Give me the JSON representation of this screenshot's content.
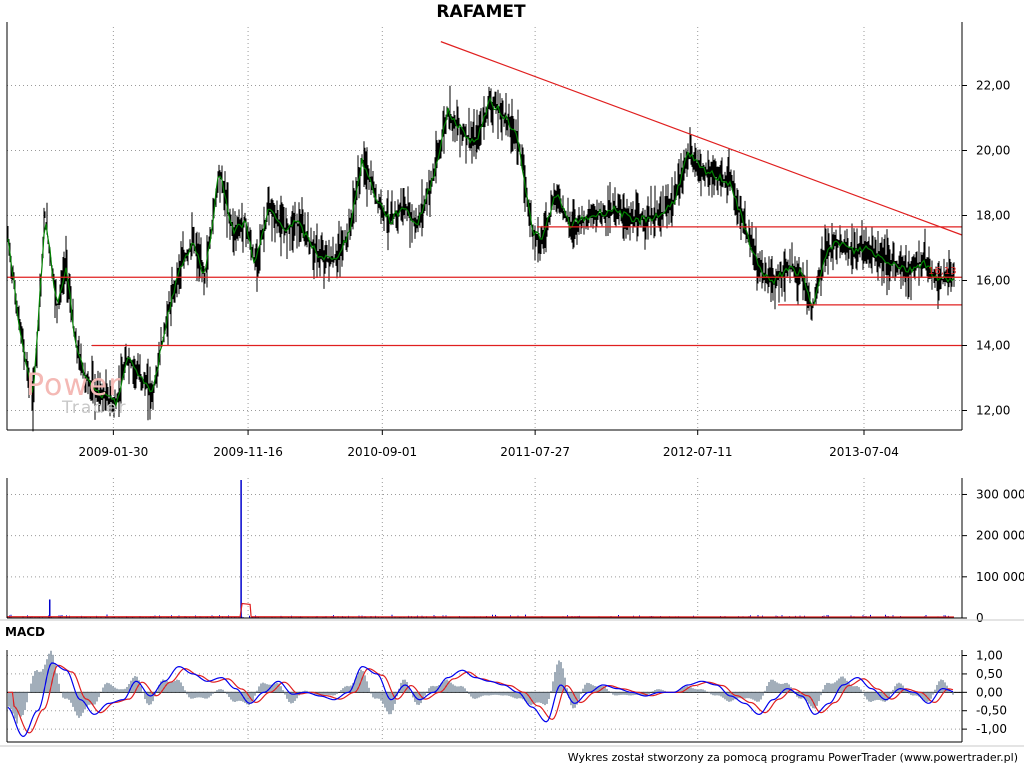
{
  "title": "RAFAMET",
  "watermark": {
    "line1": "Power",
    "line2": "Trader"
  },
  "last_value_label": "16,13",
  "macd_title": "MACD",
  "footer": "Wykres został stworzony za pomocą programu PowerTrader (www.powertrader.pl)",
  "colors": {
    "background": "#ffffff",
    "price_bars": "#000000",
    "moving_average": "#008000",
    "trendline": "#e02020",
    "volume_bars": "#0000cc",
    "volume_avg": "#e02020",
    "macd_line": "#0000ee",
    "macd_signal": "#e02020",
    "macd_histogram": "#8a9aa8",
    "grid": "#9a9a9a"
  },
  "chart_data": [
    {
      "type": "line",
      "panel": "price",
      "x_tick_labels": [
        "2009-01-30",
        "2009-11-16",
        "2010-09-01",
        "2011-07-27",
        "2012-07-11",
        "2013-07-04"
      ],
      "y_tick_labels": [
        "12,00",
        "14,00",
        "16,00",
        "18,00",
        "20,00",
        "22,00"
      ],
      "ylim": [
        11.4,
        23.8
      ],
      "xlim": [
        "2008-06-15",
        "2014-01-31"
      ],
      "grid": true,
      "series": [
        {
          "x": [
            "2008-06-15",
            "2008-07-10",
            "2008-08-10",
            "2008-09-05",
            "2008-10-01",
            "2008-10-20",
            "2008-11-10",
            "2008-12-01",
            "2008-12-20",
            "2009-01-15",
            "2009-02-05",
            "2009-03-01",
            "2009-04-01",
            "2009-04-25",
            "2009-05-20",
            "2009-06-20",
            "2009-07-20",
            "2009-08-15",
            "2009-09-15",
            "2009-10-15",
            "2009-11-10",
            "2009-12-01",
            "2009-12-31",
            "2010-01-31",
            "2010-03-01",
            "2010-04-15",
            "2010-05-20",
            "2010-06-20",
            "2010-07-20",
            "2010-08-20",
            "2010-09-20",
            "2010-10-15",
            "2010-11-15",
            "2010-12-20",
            "2011-01-20",
            "2011-02-20",
            "2011-03-20",
            "2011-04-20",
            "2011-05-20",
            "2011-06-20",
            "2011-07-20",
            "2011-08-10",
            "2011-09-10",
            "2011-10-10",
            "2011-11-10",
            "2011-12-20",
            "2012-01-20",
            "2012-02-20",
            "2012-03-20",
            "2012-04-20",
            "2012-05-20",
            "2012-06-20",
            "2012-07-20",
            "2012-08-20",
            "2012-09-20",
            "2012-10-20",
            "2012-11-20",
            "2012-12-20",
            "2013-01-20",
            "2013-02-20",
            "2013-03-15",
            "2013-04-10",
            "2013-05-10",
            "2013-06-10",
            "2013-07-10",
            "2013-08-10",
            "2013-09-10",
            "2013-10-10",
            "2013-11-10",
            "2013-12-10",
            "2014-01-15"
          ],
          "y": [
            17.5,
            14.8,
            12.3,
            18.0,
            15.2,
            16.5,
            14.0,
            13.0,
            12.6,
            12.4,
            12.2,
            13.6,
            13.0,
            12.5,
            14.5,
            16.3,
            17.2,
            16.1,
            19.4,
            17.5,
            17.8,
            16.5,
            18.2,
            17.6,
            17.8,
            16.8,
            16.6,
            17.4,
            19.7,
            18.5,
            17.8,
            18.3,
            17.7,
            19.2,
            21.2,
            20.6,
            20.2,
            21.5,
            21.1,
            20.4,
            17.6,
            17.2,
            18.7,
            17.7,
            17.9,
            18.1,
            18.2,
            17.8,
            17.9,
            18.0,
            18.4,
            19.9,
            19.4,
            19.2,
            19.0,
            17.6,
            16.4,
            15.9,
            16.4,
            16.2,
            15.1,
            16.8,
            17.2,
            16.9,
            17.0,
            16.7,
            16.5,
            16.3,
            16.6,
            16.0,
            16.13
          ]
        }
      ],
      "annotations": [
        {
          "type": "trendline",
          "x": [
            "2011-01-05",
            "2014-01-31"
          ],
          "y": [
            23.35,
            17.4
          ]
        },
        {
          "type": "horizontal",
          "x": [
            "2008-06-15",
            "2014-01-31"
          ],
          "y": 16.1
        },
        {
          "type": "horizontal",
          "x": [
            "2008-12-15",
            "2014-01-31"
          ],
          "y": 14.0
        },
        {
          "type": "horizontal",
          "x": [
            "2011-07-31",
            "2014-01-31"
          ],
          "y": 17.65
        },
        {
          "type": "horizontal",
          "x": [
            "2012-12-31",
            "2014-01-31"
          ],
          "y": 15.25
        }
      ]
    },
    {
      "type": "bar",
      "panel": "volume",
      "y_tick_labels": [
        "0",
        "100 000",
        "200 000",
        "300 000"
      ],
      "ylim": [
        0,
        340000
      ],
      "grid": true,
      "spikes": [
        {
          "x": "2008-09-15",
          "value": 45000
        },
        {
          "x": "2009-11-01",
          "value": 335000
        }
      ]
    },
    {
      "type": "line",
      "panel": "macd",
      "y_tick_labels": [
        "-1,00",
        "-0,50",
        "0,00",
        "0,50",
        "1,00"
      ],
      "ylim": [
        -1.35,
        1.15
      ],
      "grid": true,
      "series": [
        {
          "x": [
            "2008-06-15",
            "2008-07-20",
            "2008-08-20",
            "2008-09-20",
            "2008-10-20",
            "2008-11-20",
            "2008-12-20",
            "2009-01-20",
            "2009-02-20",
            "2009-03-20",
            "2009-04-20",
            "2009-05-20",
            "2009-06-20",
            "2009-07-20",
            "2009-08-20",
            "2009-09-20",
            "2009-10-20",
            "2009-11-20",
            "2009-12-20",
            "2010-01-20",
            "2010-02-20",
            "2010-03-20",
            "2010-04-20",
            "2010-05-20",
            "2010-06-20",
            "2010-07-20",
            "2010-08-20",
            "2010-09-20",
            "2010-10-20",
            "2010-11-20",
            "2010-12-20",
            "2011-01-20",
            "2011-02-20",
            "2011-03-20",
            "2011-04-20",
            "2011-05-20",
            "2011-06-20",
            "2011-07-20",
            "2011-08-20",
            "2011-09-20",
            "2011-10-20",
            "2011-11-20",
            "2011-12-20",
            "2012-01-20",
            "2012-02-20",
            "2012-03-20",
            "2012-04-20",
            "2012-05-20",
            "2012-06-20",
            "2012-07-20",
            "2012-08-20",
            "2012-09-20",
            "2012-10-20",
            "2012-11-20",
            "2012-12-20",
            "2013-01-20",
            "2013-02-20",
            "2013-03-20",
            "2013-04-20",
            "2013-05-20",
            "2013-06-20",
            "2013-07-20",
            "2013-08-20",
            "2013-09-20",
            "2013-10-20",
            "2013-11-20",
            "2013-12-20",
            "2014-01-20"
          ],
          "y": [
            -0.4,
            -1.2,
            -0.5,
            0.8,
            0.6,
            -0.2,
            -0.6,
            -0.3,
            -0.2,
            0.3,
            -0.1,
            0.3,
            0.7,
            0.5,
            0.3,
            0.4,
            0.1,
            -0.3,
            0.0,
            0.3,
            -0.05,
            0.0,
            -0.1,
            -0.2,
            0.0,
            0.7,
            0.5,
            -0.2,
            0.2,
            -0.2,
            0.0,
            0.4,
            0.6,
            0.4,
            0.3,
            0.2,
            0.0,
            -0.4,
            -0.8,
            0.2,
            -0.3,
            0.0,
            0.2,
            0.1,
            0.0,
            -0.1,
            0.0,
            0.0,
            0.2,
            0.3,
            0.2,
            -0.1,
            -0.3,
            -0.6,
            -0.2,
            0.1,
            -0.1,
            -0.6,
            -0.3,
            0.2,
            0.4,
            0.1,
            -0.2,
            0.1,
            0.0,
            -0.3,
            0.1,
            0.0
          ]
        }
      ]
    }
  ]
}
